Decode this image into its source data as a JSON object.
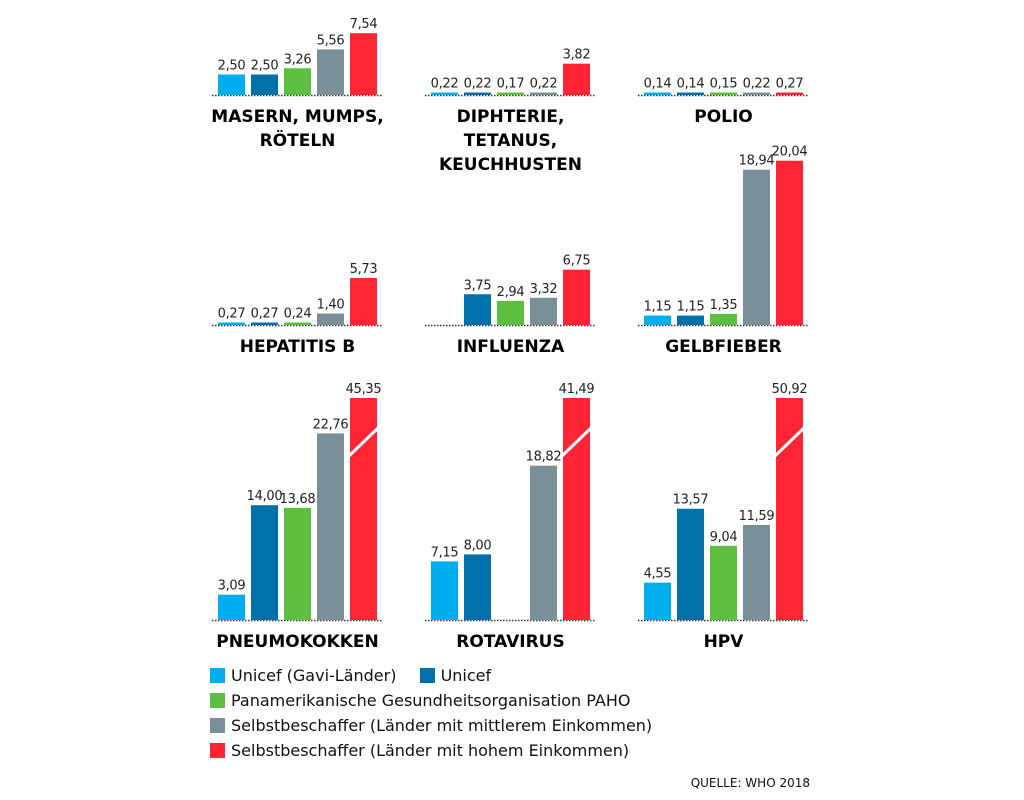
{
  "chart_data": {
    "type": "bar",
    "layout": "small-multiples",
    "series_names": [
      "Unicef (Gavi-Länder)",
      "Unicef",
      "Panamerikanische Gesundheitsorganisation PAHO",
      "Selbstbeschaffer (Länder mit mittlerem Einkommen)",
      "Selbstbeschaffer (Länder mit hohem Einkommen)"
    ],
    "colors": [
      "#00aeef",
      "#0070a8",
      "#5cbf3f",
      "#7a8f98",
      "#ff2535"
    ],
    "panels": [
      {
        "title": [
          "MASERN, MUMPS,",
          "RÖTELN"
        ],
        "values": [
          2.5,
          2.5,
          3.26,
          5.56,
          7.54
        ]
      },
      {
        "title": [
          "DIPHTERIE,",
          "TETANUS,",
          "KEUCHHUSTEN"
        ],
        "values": [
          0.22,
          0.22,
          0.17,
          0.22,
          3.82
        ]
      },
      {
        "title": [
          "POLIO"
        ],
        "values": [
          0.14,
          0.14,
          0.15,
          0.22,
          0.27
        ]
      },
      {
        "title": [
          "HEPATITIS B"
        ],
        "values": [
          0.27,
          0.27,
          0.24,
          1.4,
          5.73
        ]
      },
      {
        "title": [
          "INFLUENZA"
        ],
        "values": [
          null,
          3.75,
          2.94,
          3.32,
          6.75
        ]
      },
      {
        "title": [
          "GELBFIEBER"
        ],
        "values": [
          1.15,
          1.15,
          1.35,
          18.94,
          20.04
        ]
      },
      {
        "title": [
          "PNEUMOKOKKEN"
        ],
        "values": [
          3.09,
          14.0,
          13.68,
          22.76,
          45.35
        ]
      },
      {
        "title": [
          "ROTAVIRUS"
        ],
        "values": [
          7.15,
          8.0,
          null,
          18.82,
          41.49
        ]
      },
      {
        "title": [
          "HPV"
        ],
        "values": [
          4.55,
          13.57,
          9.04,
          11.59,
          50.92
        ]
      }
    ],
    "truncated_axis_break": true,
    "decimal_separator": ","
  },
  "legend": [
    {
      "label": "Unicef (Gavi-Länder)",
      "color": "#00aeef"
    },
    {
      "label": "Unicef",
      "color": "#0070a8"
    },
    {
      "label": "Panamerikanische Gesundheitsorganisation PAHO",
      "color": "#5cbf3f"
    },
    {
      "label": "Selbstbeschaffer (Länder mit mittlerem Einkommen)",
      "color": "#7a8f98"
    },
    {
      "label": "Selbstbeschaffer (Länder mit hohem Einkommen)",
      "color": "#ff2535"
    }
  ],
  "source": "QUELLE: WHO 2018"
}
